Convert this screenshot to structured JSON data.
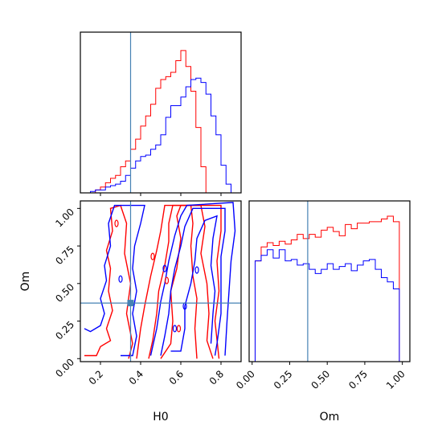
{
  "chart_data": [
    {
      "type": "histogram",
      "panel": "H0 marginal",
      "xlim": [
        0.1,
        0.9
      ],
      "bins": [
        0.1,
        0.125,
        0.15,
        0.175,
        0.2,
        0.225,
        0.25,
        0.275,
        0.3,
        0.325,
        0.35,
        0.375,
        0.4,
        0.425,
        0.45,
        0.475,
        0.5,
        0.525,
        0.55,
        0.575,
        0.6,
        0.625,
        0.65,
        0.675,
        0.7,
        0.725,
        0.75,
        0.775,
        0.8,
        0.825,
        0.85,
        0.875,
        0.9
      ],
      "series": [
        {
          "color": "#ff0000",
          "counts": [
            0,
            0,
            0,
            0.02,
            0.04,
            0.07,
            0.1,
            0.12,
            0.18,
            0.22,
            0.3,
            0.37,
            0.46,
            0.53,
            0.61,
            0.72,
            0.78,
            0.8,
            0.83,
            0.91,
            0.98,
            0.87,
            0.7,
            0.45,
            0.18,
            0.0,
            0,
            0,
            0,
            0,
            0,
            0
          ]
        },
        {
          "color": "#0000ff",
          "counts": [
            0,
            0,
            0.01,
            0.02,
            0.02,
            0.04,
            0.05,
            0.06,
            0.08,
            0.12,
            0.17,
            0.22,
            0.25,
            0.26,
            0.3,
            0.33,
            0.4,
            0.52,
            0.6,
            0.6,
            0.66,
            0.73,
            0.78,
            0.79,
            0.76,
            0.68,
            0.53,
            0.4,
            0.19,
            0.06,
            0.0,
            0
          ]
        }
      ],
      "truth": 0.35
    },
    {
      "type": "contour",
      "panel": "H0 vs Om joint",
      "xlabel": "H0",
      "ylabel": "Om",
      "xlim": [
        0.1,
        0.9
      ],
      "ylim": [
        -0.02,
        1.05
      ],
      "xticks": [
        0.2,
        0.4,
        0.6,
        0.8
      ],
      "yticks": [
        0.0,
        0.25,
        0.5,
        0.75,
        1.0
      ],
      "xtick_labels": [
        "0.2",
        "0.4",
        "0.6",
        "0.8"
      ],
      "ytick_labels": [
        "0.00",
        "0.25",
        "0.50",
        "0.75",
        "1.00"
      ],
      "series": [
        {
          "color": "#ff0000",
          "levels": [
            [
              [
                0.12,
                0.02
              ],
              [
                0.18,
                0.02
              ],
              [
                0.2,
                0.08
              ],
              [
                0.25,
                0.12
              ],
              [
                0.23,
                0.2
              ],
              [
                0.26,
                0.32
              ],
              [
                0.24,
                0.45
              ],
              [
                0.25,
                0.6
              ],
              [
                0.23,
                0.72
              ],
              [
                0.26,
                0.85
              ],
              [
                0.25,
                1.0
              ],
              [
                0.3,
                1.02
              ],
              [
                0.33,
                0.9
              ],
              [
                0.32,
                0.7
              ],
              [
                0.35,
                0.5
              ],
              [
                0.33,
                0.3
              ],
              [
                0.36,
                0.1
              ],
              [
                0.34,
                0.0
              ]
            ],
            [
              [
                0.5,
                0.0
              ],
              [
                0.55,
                0.1
              ],
              [
                0.56,
                0.25
              ],
              [
                0.55,
                0.45
              ],
              [
                0.58,
                0.6
              ],
              [
                0.6,
                0.8
              ],
              [
                0.58,
                0.95
              ],
              [
                0.6,
                1.02
              ],
              [
                0.65,
                1.02
              ],
              [
                0.66,
                0.9
              ],
              [
                0.65,
                0.75
              ],
              [
                0.66,
                0.55
              ],
              [
                0.68,
                0.4
              ],
              [
                0.67,
                0.2
              ],
              [
                0.68,
                0.0
              ]
            ],
            [
              [
                0.44,
                0.0
              ],
              [
                0.46,
                0.12
              ],
              [
                0.48,
                0.3
              ],
              [
                0.49,
                0.45
              ],
              [
                0.52,
                0.62
              ],
              [
                0.54,
                0.78
              ],
              [
                0.54,
                0.9
              ],
              [
                0.56,
                1.02
              ],
              [
                0.7,
                1.02
              ],
              [
                0.72,
                0.88
              ],
              [
                0.7,
                0.7
              ],
              [
                0.73,
                0.5
              ],
              [
                0.74,
                0.3
              ],
              [
                0.73,
                0.12
              ],
              [
                0.76,
                0.0
              ]
            ],
            [
              [
                0.38,
                0.0
              ],
              [
                0.4,
                0.2
              ],
              [
                0.42,
                0.35
              ],
              [
                0.45,
                0.55
              ],
              [
                0.48,
                0.72
              ],
              [
                0.5,
                0.85
              ],
              [
                0.52,
                1.02
              ],
              [
                0.8,
                1.02
              ],
              [
                0.8,
                0.85
              ],
              [
                0.78,
                0.65
              ],
              [
                0.79,
                0.45
              ],
              [
                0.77,
                0.25
              ],
              [
                0.79,
                0.0
              ]
            ]
          ]
        },
        {
          "color": "#0000ff",
          "levels": [
            [
              [
                0.12,
                0.2
              ],
              [
                0.15,
                0.18
              ],
              [
                0.2,
                0.22
              ],
              [
                0.22,
                0.3
              ],
              [
                0.2,
                0.4
              ],
              [
                0.23,
                0.52
              ],
              [
                0.22,
                0.62
              ],
              [
                0.25,
                0.75
              ],
              [
                0.24,
                0.9
              ],
              [
                0.27,
                1.02
              ],
              [
                0.42,
                1.02
              ],
              [
                0.4,
                0.9
              ],
              [
                0.37,
                0.75
              ],
              [
                0.36,
                0.6
              ],
              [
                0.38,
                0.45
              ],
              [
                0.36,
                0.3
              ],
              [
                0.38,
                0.15
              ],
              [
                0.36,
                0.02
              ],
              [
                0.3,
                0.02
              ]
            ],
            [
              [
                0.55,
                0.05
              ],
              [
                0.6,
                0.05
              ],
              [
                0.62,
                0.2
              ],
              [
                0.62,
                0.35
              ],
              [
                0.65,
                0.5
              ],
              [
                0.67,
                0.65
              ],
              [
                0.68,
                0.8
              ],
              [
                0.72,
                0.92
              ],
              [
                0.78,
                0.95
              ],
              [
                0.76,
                0.8
              ],
              [
                0.75,
                0.62
              ],
              [
                0.77,
                0.45
              ],
              [
                0.76,
                0.3
              ],
              [
                0.75,
                0.1
              ]
            ],
            [
              [
                0.5,
                0.02
              ],
              [
                0.52,
                0.15
              ],
              [
                0.54,
                0.3
              ],
              [
                0.55,
                0.45
              ],
              [
                0.57,
                0.6
              ],
              [
                0.6,
                0.75
              ],
              [
                0.62,
                0.88
              ],
              [
                0.66,
                1.0
              ],
              [
                0.82,
                1.0
              ],
              [
                0.82,
                0.85
              ],
              [
                0.8,
                0.68
              ],
              [
                0.8,
                0.5
              ],
              [
                0.8,
                0.3
              ],
              [
                0.78,
                0.1
              ],
              [
                0.77,
                0.02
              ]
            ],
            [
              [
                0.45,
                0.02
              ],
              [
                0.48,
                0.2
              ],
              [
                0.5,
                0.38
              ],
              [
                0.52,
                0.5
              ],
              [
                0.54,
                0.65
              ],
              [
                0.57,
                0.82
              ],
              [
                0.6,
                0.95
              ],
              [
                0.63,
                1.02
              ],
              [
                0.86,
                1.04
              ],
              [
                0.87,
                0.85
              ],
              [
                0.85,
                0.65
              ],
              [
                0.84,
                0.45
              ],
              [
                0.83,
                0.25
              ],
              [
                0.82,
                0.02
              ]
            ]
          ]
        }
      ],
      "truth": {
        "x": 0.35,
        "y": 0.37
      }
    },
    {
      "type": "histogram",
      "panel": "Om marginal",
      "xlabel": "Om",
      "xlim": [
        -0.02,
        1.05
      ],
      "xticks": [
        0.0,
        0.25,
        0.5,
        0.75,
        1.0
      ],
      "xtick_labels": [
        "0.00",
        "0.25",
        "0.50",
        "0.75",
        "1.00"
      ],
      "bins": [
        -0.02,
        0.02,
        0.06,
        0.1,
        0.14,
        0.18,
        0.22,
        0.26,
        0.3,
        0.34,
        0.38,
        0.42,
        0.46,
        0.5,
        0.54,
        0.58,
        0.62,
        0.66,
        0.7,
        0.74,
        0.78,
        0.82,
        0.86,
        0.9,
        0.94,
        0.98,
        1.02,
        1.05
      ],
      "series": [
        {
          "color": "#ff0000",
          "counts": [
            0.0,
            0.72,
            0.82,
            0.85,
            0.83,
            0.86,
            0.84,
            0.87,
            0.91,
            0.88,
            0.91,
            0.89,
            0.94,
            0.96,
            0.93,
            0.9,
            0.98,
            0.95,
            0.99,
            0.99,
            1.0,
            1.0,
            1.02,
            1.04,
            1.0,
            0.0,
            0.0
          ]
        },
        {
          "color": "#0000ff",
          "counts": [
            0.0,
            0.72,
            0.76,
            0.8,
            0.74,
            0.8,
            0.72,
            0.73,
            0.69,
            0.7,
            0.66,
            0.63,
            0.66,
            0.7,
            0.66,
            0.68,
            0.7,
            0.65,
            0.69,
            0.72,
            0.73,
            0.66,
            0.6,
            0.57,
            0.52,
            0.0,
            0.0
          ]
        }
      ],
      "truth": 0.37
    }
  ],
  "labels": {
    "x_h0": "H0",
    "x_om": "Om",
    "y_om": "Om"
  }
}
